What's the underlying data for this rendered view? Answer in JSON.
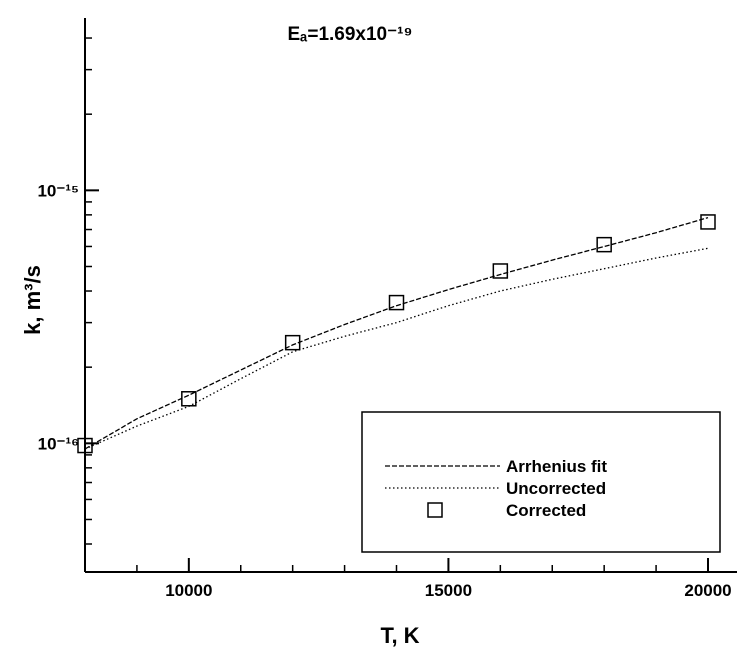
{
  "chart_data": {
    "type": "line",
    "title": "Eₐ=1.69x10⁻¹⁹",
    "xlabel": "T, K",
    "ylabel": "k,  m³/s",
    "x": [
      8000,
      9000,
      10000,
      11000,
      12000,
      13000,
      14000,
      15000,
      16000,
      17000,
      18000,
      19000,
      20000
    ],
    "series": [
      {
        "name": "Arrhenius fit",
        "color": "#000000",
        "style": "dashed",
        "values": [
          9.5e-17,
          1.25e-16,
          1.55e-16,
          1.95e-16,
          2.45e-16,
          2.95e-16,
          3.5e-16,
          4.05e-16,
          4.65e-16,
          5.3e-16,
          6e-16,
          6.8e-16,
          7.8e-16
        ]
      },
      {
        "name": "Uncorrected",
        "color": "#000000",
        "style": "dotted",
        "values": [
          9.5e-17,
          1.17e-16,
          1.4e-16,
          1.8e-16,
          2.3e-16,
          2.65e-16,
          3e-16,
          3.5e-16,
          4e-16,
          4.45e-16,
          4.9e-16,
          5.4e-16,
          5.9e-16
        ]
      },
      {
        "name": "Corrected",
        "color": "#000000",
        "style": "square",
        "values": [
          9.8e-17,
          null,
          1.5e-16,
          null,
          2.5e-16,
          null,
          3.6e-16,
          null,
          4.8e-16,
          null,
          6.1e-16,
          null,
          7.5e-16
        ]
      }
    ],
    "xlim": [
      8000,
      20000
    ],
    "xticks": [
      10000,
      15000,
      20000
    ],
    "xminorticks": [
      9000,
      11000,
      12000,
      13000,
      14000,
      16000,
      17000,
      18000,
      19000
    ],
    "ylim": [
      3.1e-17,
      4.8e-15
    ],
    "ylog": true,
    "yticks": [
      {
        "value": 1e-16,
        "label": "10⁻¹⁶"
      },
      {
        "value": 1e-15,
        "label": "10⁻¹⁵"
      }
    ],
    "yminorticks": [
      4e-17,
      5e-17,
      6e-17,
      7e-17,
      8e-17,
      9e-17,
      2e-16,
      3e-16,
      4e-16,
      5e-16,
      6e-16,
      7e-16,
      8e-16,
      9e-16,
      2e-15,
      3e-15,
      4e-15
    ],
    "grid": false,
    "legend": "lower right"
  }
}
